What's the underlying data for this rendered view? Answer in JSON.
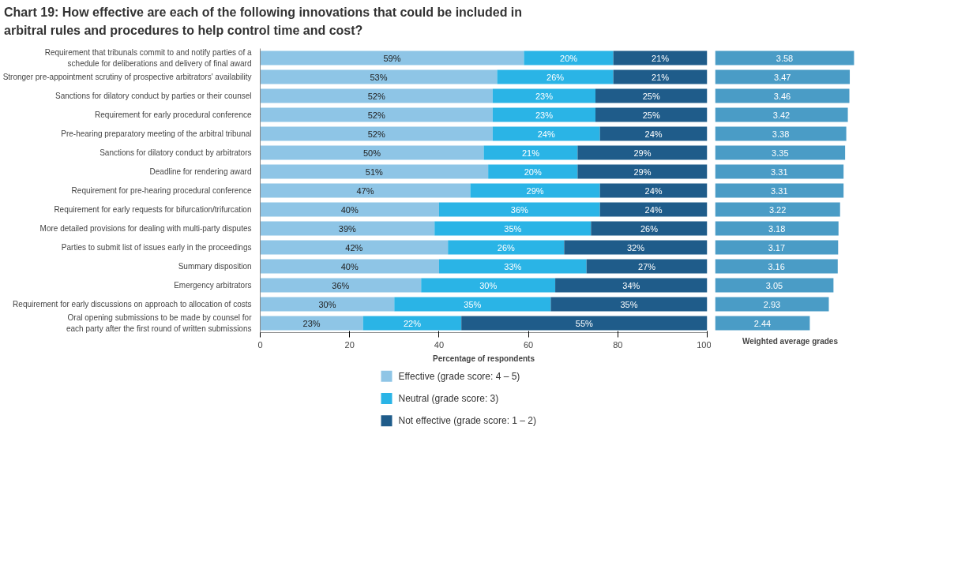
{
  "chart_data": [
    {
      "type": "bar",
      "orientation": "horizontal",
      "stacked": true,
      "title": "Chart 19: How effective are each of the following innovations that could be included in\narbitral rules and procedures to help control time and cost?",
      "xlabel": "Percentage of respondents",
      "categories": [
        "Requirement that tribunals commit to and notify parties of a\nschedule for deliberations and delivery of final award",
        "Stronger pre-appointment scrutiny of prospective arbitrators' availability",
        "Sanctions for dilatory conduct by parties or their counsel",
        "Requirement for early procedural conference",
        "Pre-hearing preparatory meeting of the arbitral tribunal",
        "Sanctions for dilatory conduct by arbitrators",
        "Deadline for rendering award",
        "Requirement for pre-hearing procedural conference",
        "Requirement for early requests for bifurcation/trifurcation",
        "More detailed provisions for dealing with multi-party disputes",
        "Parties to submit list of issues early in the proceedings",
        "Summary disposition",
        "Emergency arbitrators",
        "Requirement for early discussions on approach to allocation of costs",
        "Oral opening submissions to be made by counsel for\neach party after the first round of written submissions"
      ],
      "series": [
        {
          "name": "Effective (grade score: 4 – 5)",
          "color": "#8ec5e6",
          "values": [
            59,
            53,
            52,
            52,
            52,
            50,
            51,
            47,
            40,
            39,
            42,
            40,
            36,
            30,
            23
          ],
          "value_labels": [
            "59%",
            "53%",
            "52%",
            "52%",
            "52%",
            "50%",
            "51%",
            "47%",
            "40%",
            "39%",
            "42%",
            "40%",
            "36%",
            "30%",
            "23%"
          ]
        },
        {
          "name": "Neutral (grade score: 3)",
          "color": "#2ab4e6",
          "values": [
            20,
            26,
            23,
            23,
            24,
            21,
            20,
            29,
            36,
            35,
            26,
            33,
            30,
            35,
            22
          ],
          "value_labels": [
            "20%",
            "26%",
            "23%",
            "23%",
            "24%",
            "21%",
            "20%",
            "29%",
            "36%",
            "35%",
            "26%",
            "33%",
            "30%",
            "35%",
            "22%"
          ]
        },
        {
          "name": "Not effective (grade score: 1 – 2)",
          "color": "#1f5c8a",
          "values": [
            21,
            21,
            25,
            25,
            24,
            29,
            29,
            24,
            24,
            26,
            32,
            27,
            34,
            35,
            55
          ],
          "value_labels": [
            "21%",
            "21%",
            "25%",
            "25%",
            "24%",
            "29%",
            "29%",
            "24%",
            "24%",
            "26%",
            "32%",
            "27%",
            "34%",
            "35%",
            "55%"
          ]
        }
      ],
      "xlim": [
        0,
        100
      ],
      "xticks": [
        0,
        20,
        40,
        60,
        80,
        100
      ],
      "legend": "bottom",
      "grid": false
    },
    {
      "type": "bar",
      "orientation": "horizontal",
      "xlabel": "Weighted average grades",
      "categories": [
        null,
        null,
        null,
        null,
        null,
        null,
        null,
        null,
        null,
        null,
        null,
        null,
        null,
        null,
        null
      ],
      "color": "#4a9cc6",
      "values": [
        3.58,
        3.47,
        3.46,
        3.42,
        3.38,
        3.35,
        3.31,
        3.31,
        3.22,
        3.18,
        3.17,
        3.16,
        3.05,
        2.93,
        2.44
      ],
      "data_labels": true,
      "tick_labels": false,
      "grid": false
    }
  ]
}
